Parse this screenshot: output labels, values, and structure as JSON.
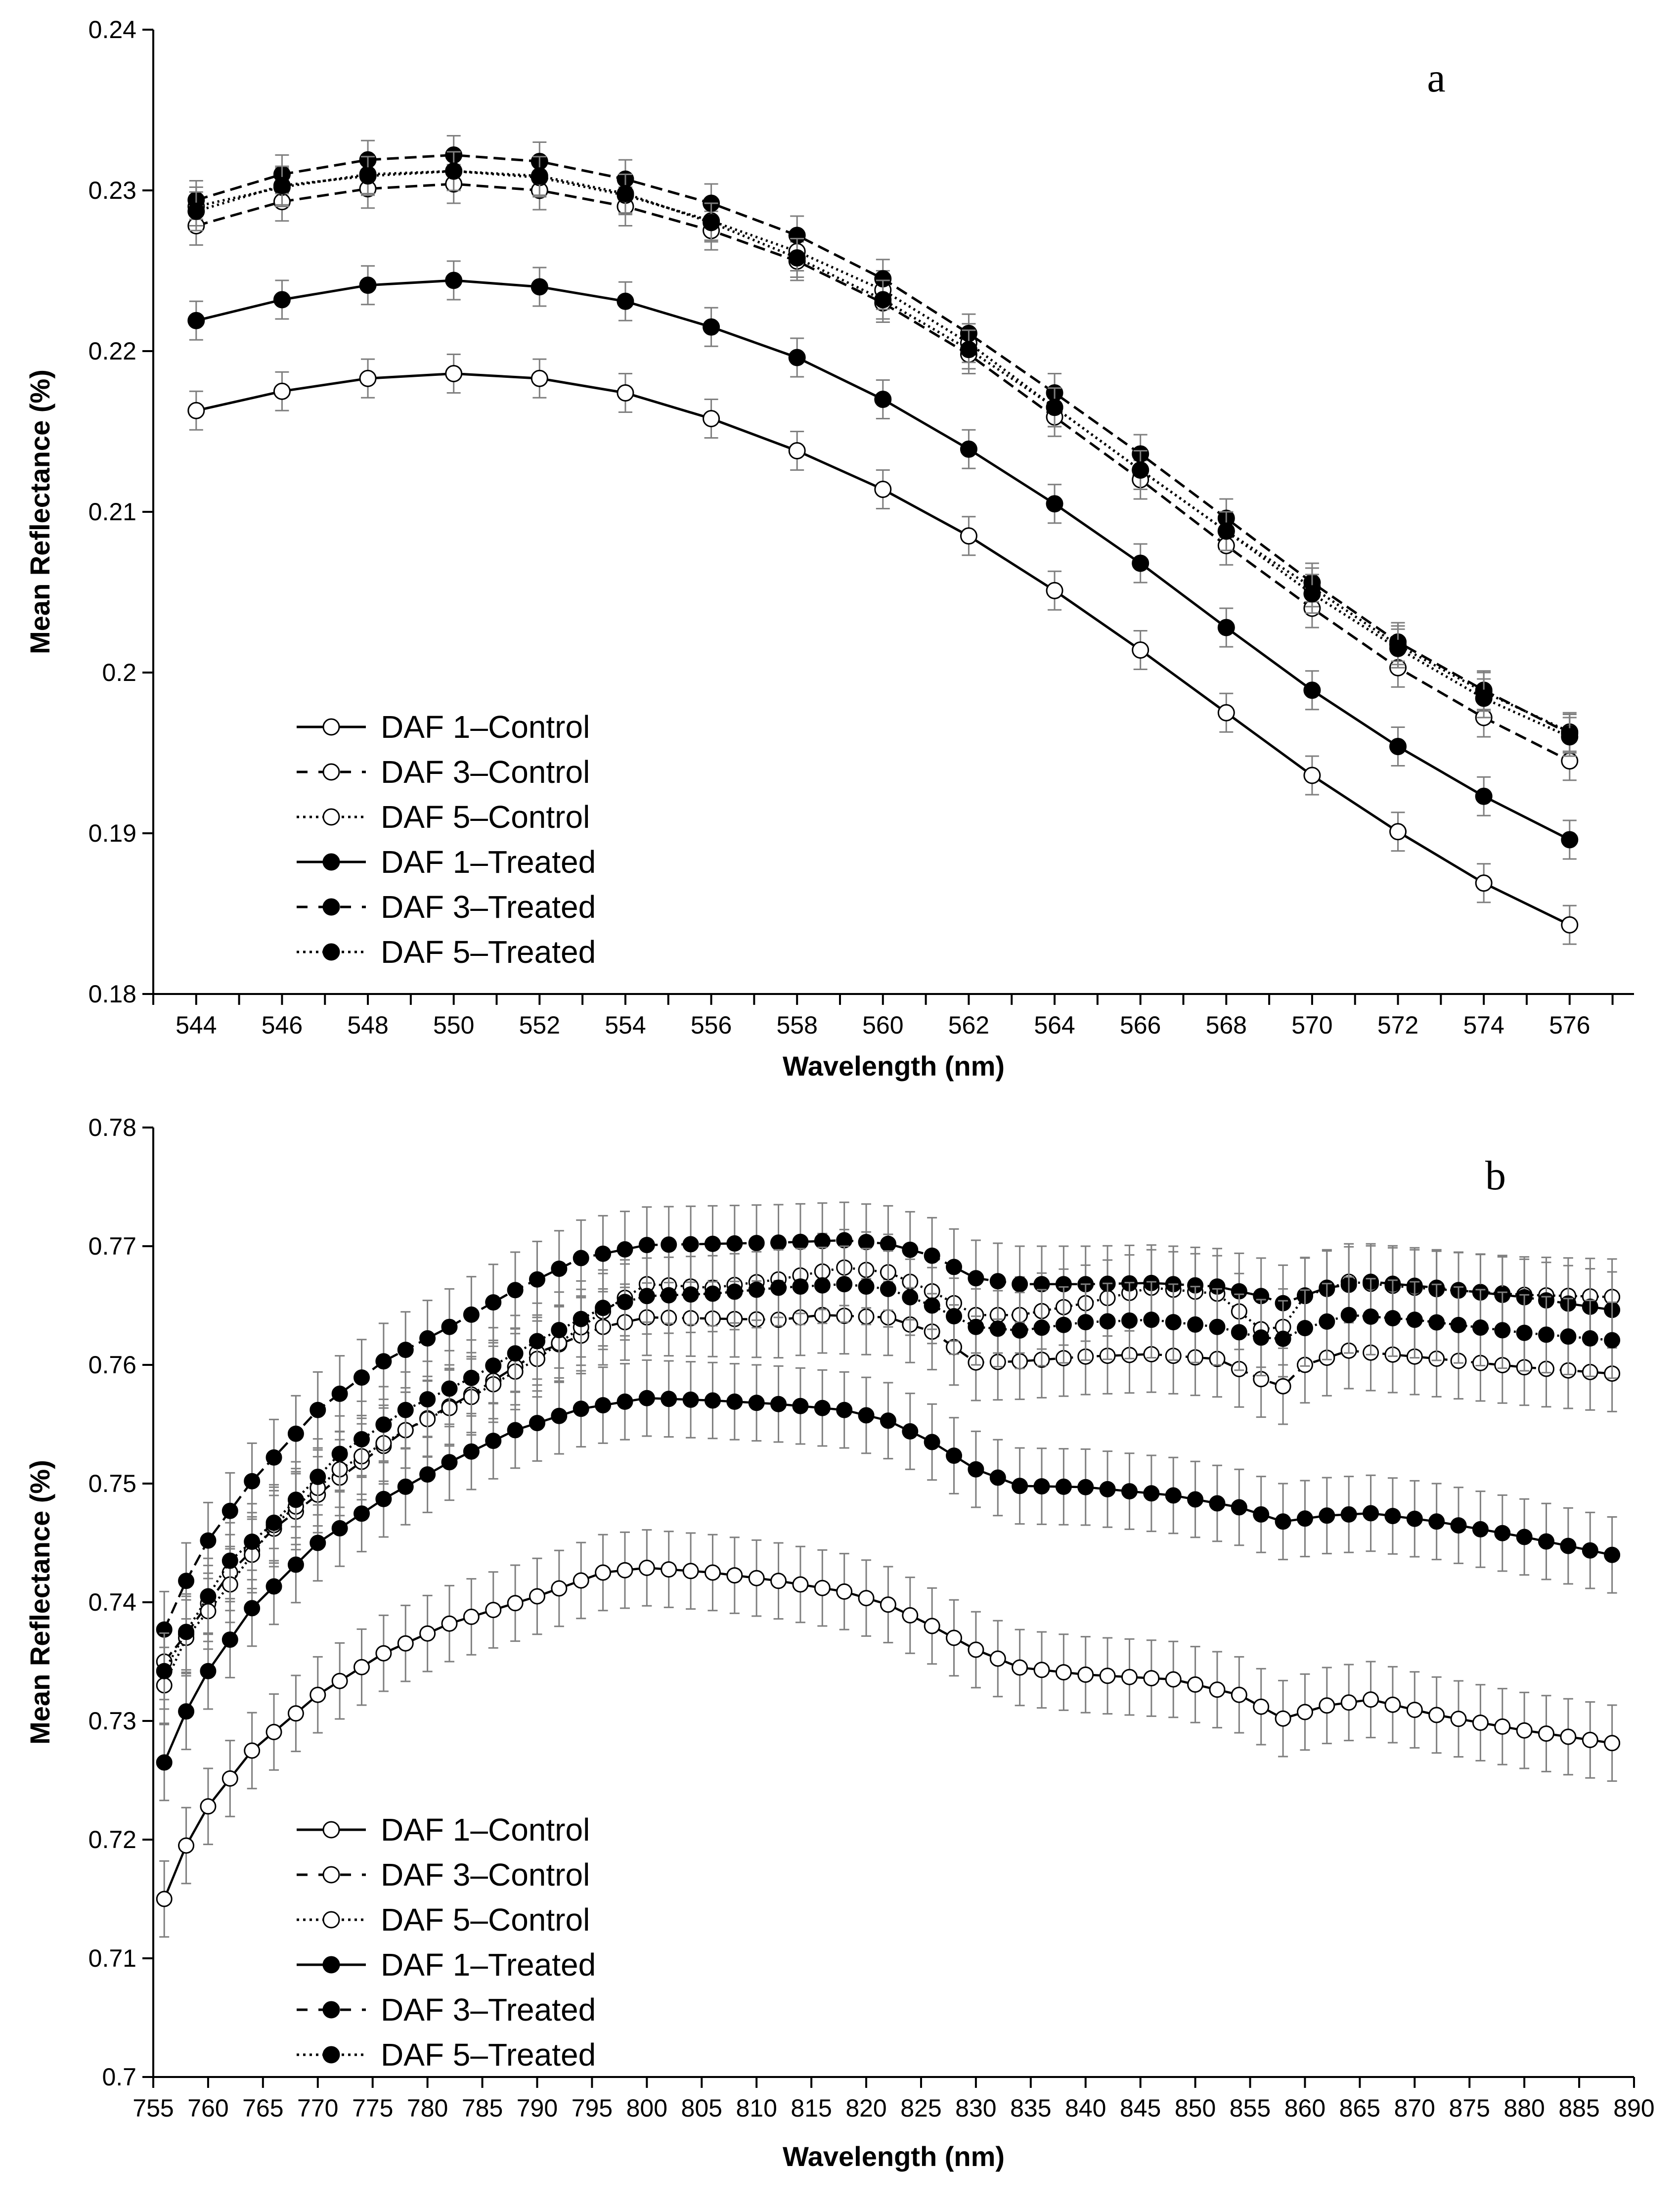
{
  "chart_data": [
    {
      "type": "line",
      "panel_label": "a",
      "xlabel": "Wavelength (nm)",
      "ylabel": "Mean Reflectance (%)",
      "xlim": [
        543,
        577.5
      ],
      "ylim": [
        0.18,
        0.24
      ],
      "x_ticks": [
        544,
        546,
        548,
        550,
        552,
        554,
        556,
        558,
        560,
        562,
        564,
        566,
        568,
        570,
        572,
        574,
        576
      ],
      "y_ticks": [
        0.18,
        0.19,
        0.2,
        0.21,
        0.22,
        0.23,
        0.24
      ],
      "y_tick_labels": [
        "0.18",
        "0.19",
        "0.2",
        "0.21",
        "0.22",
        "0.23",
        "0.24"
      ],
      "x": [
        544,
        546,
        548,
        550,
        552,
        554,
        556,
        558,
        560,
        562,
        564,
        566,
        568,
        570,
        572,
        574,
        576
      ],
      "error_bar": 0.0012,
      "legend_position": "bottom-left",
      "series": [
        {
          "name": "DAF 1–Control",
          "style": "solid",
          "marker": "open",
          "values": [
            0.2163,
            0.2175,
            0.2183,
            0.2186,
            0.2183,
            0.2174,
            0.2158,
            0.2138,
            0.2114,
            0.2085,
            0.2051,
            0.2014,
            0.1975,
            0.1936,
            0.1901,
            0.1869,
            0.1843
          ]
        },
        {
          "name": "DAF 3–Control",
          "style": "dashed",
          "marker": "open",
          "values": [
            0.2278,
            0.2293,
            0.2301,
            0.2304,
            0.23,
            0.229,
            0.2275,
            0.2256,
            0.223,
            0.2198,
            0.2159,
            0.212,
            0.2079,
            0.204,
            0.2003,
            0.1972,
            0.1945
          ]
        },
        {
          "name": "DAF 5–Control",
          "style": "dotted",
          "marker": "open",
          "values": [
            0.229,
            0.2302,
            0.231,
            0.2312,
            0.2308,
            0.2297,
            0.2281,
            0.2262,
            0.2238,
            0.2205,
            0.2165,
            0.2126,
            0.2088,
            0.2053,
            0.2017,
            0.1988,
            0.1963
          ]
        },
        {
          "name": "DAF 1–Treated",
          "style": "solid",
          "marker": "filled",
          "values": [
            0.2219,
            0.2232,
            0.2241,
            0.2244,
            0.224,
            0.2231,
            0.2215,
            0.2196,
            0.217,
            0.2139,
            0.2105,
            0.2068,
            0.2028,
            0.1989,
            0.1954,
            0.1923,
            0.1896
          ]
        },
        {
          "name": "DAF 3–Treated",
          "style": "dashed",
          "marker": "filled",
          "values": [
            0.2294,
            0.231,
            0.2319,
            0.2322,
            0.2318,
            0.2307,
            0.2292,
            0.2272,
            0.2245,
            0.2211,
            0.2174,
            0.2136,
            0.2096,
            0.2056,
            0.2019,
            0.1989,
            0.1962
          ]
        },
        {
          "name": "DAF 5–Treated",
          "style": "dotted",
          "marker": "filled",
          "values": [
            0.2287,
            0.2303,
            0.2309,
            0.2312,
            0.2309,
            0.2298,
            0.228,
            0.2258,
            0.2232,
            0.2201,
            0.2165,
            0.2126,
            0.2088,
            0.2049,
            0.2015,
            0.1984,
            0.196
          ]
        }
      ]
    },
    {
      "type": "line",
      "panel_label": "b",
      "xlabel": "Wavelength (nm)",
      "ylabel": "Mean Reflectance (%)",
      "xlim": [
        755,
        890
      ],
      "ylim": [
        0.7,
        0.78
      ],
      "x_ticks": [
        755,
        760,
        765,
        770,
        775,
        780,
        785,
        790,
        795,
        800,
        805,
        810,
        815,
        820,
        825,
        830,
        835,
        840,
        845,
        850,
        855,
        860,
        865,
        870,
        875,
        880,
        885,
        890
      ],
      "y_ticks": [
        0.7,
        0.71,
        0.72,
        0.73,
        0.74,
        0.75,
        0.76,
        0.77,
        0.78
      ],
      "y_tick_labels": [
        "0.7",
        "0.71",
        "0.72",
        "0.73",
        "0.74",
        "0.75",
        "0.76",
        "0.77",
        "0.78"
      ],
      "x_start": 756,
      "x_step": 2,
      "x_count": 67,
      "error_bar": 0.0032,
      "legend_position": "bottom-left",
      "series": [
        {
          "name": "DAF 1–Control",
          "style": "solid",
          "marker": "open",
          "knots": [
            [
              756,
              0.715
            ],
            [
              758,
              0.7195
            ],
            [
              760,
              0.7228
            ],
            [
              764,
              0.7275
            ],
            [
              770,
              0.7322
            ],
            [
              776,
              0.7357
            ],
            [
              782,
              0.7382
            ],
            [
              790,
              0.7405
            ],
            [
              796,
              0.7425
            ],
            [
              800,
              0.7429
            ],
            [
              806,
              0.7425
            ],
            [
              812,
              0.7418
            ],
            [
              818,
              0.7409
            ],
            [
              822,
              0.7398
            ],
            [
              826,
              0.738
            ],
            [
              830,
              0.736
            ],
            [
              834,
              0.7345
            ],
            [
              840,
              0.7339
            ],
            [
              848,
              0.7335
            ],
            [
              854,
              0.7322
            ],
            [
              858,
              0.7302
            ],
            [
              862,
              0.7313
            ],
            [
              866,
              0.7318
            ],
            [
              872,
              0.7305
            ],
            [
              880,
              0.7292
            ],
            [
              889,
              0.728
            ]
          ]
        },
        {
          "name": "DAF 3–Control",
          "style": "dashed",
          "marker": "open",
          "knots": [
            [
              756,
              0.735
            ],
            [
              758,
              0.7373
            ],
            [
              762,
              0.7425
            ],
            [
              766,
              0.7462
            ],
            [
              772,
              0.7505
            ],
            [
              778,
              0.7545
            ],
            [
              784,
              0.7575
            ],
            [
              790,
              0.761
            ],
            [
              796,
              0.7632
            ],
            [
              800,
              0.764
            ],
            [
              806,
              0.7639
            ],
            [
              812,
              0.7638
            ],
            [
              816,
              0.7642
            ],
            [
              822,
              0.764
            ],
            [
              826,
              0.7628
            ],
            [
              830,
              0.7602
            ],
            [
              834,
              0.7603
            ],
            [
              840,
              0.7607
            ],
            [
              846,
              0.7609
            ],
            [
              852,
              0.7605
            ],
            [
              856,
              0.7588
            ],
            [
              858,
              0.7582
            ],
            [
              860,
              0.76
            ],
            [
              864,
              0.7612
            ],
            [
              870,
              0.7607
            ],
            [
              880,
              0.7598
            ],
            [
              889,
              0.7592
            ]
          ]
        },
        {
          "name": "DAF 5–Control",
          "style": "dotted",
          "marker": "open",
          "knots": [
            [
              756,
              0.733
            ],
            [
              758,
              0.737
            ],
            [
              762,
              0.7415
            ],
            [
              766,
              0.7465
            ],
            [
              772,
              0.7512
            ],
            [
              778,
              0.7545
            ],
            [
              784,
              0.7573
            ],
            [
              790,
              0.7605
            ],
            [
              796,
              0.7645
            ],
            [
              800,
              0.7668
            ],
            [
              806,
              0.7665
            ],
            [
              812,
              0.7672
            ],
            [
              818,
              0.7682
            ],
            [
              822,
              0.7678
            ],
            [
              826,
              0.7662
            ],
            [
              830,
              0.7642
            ],
            [
              834,
              0.7642
            ],
            [
              840,
              0.7652
            ],
            [
              846,
              0.7665
            ],
            [
              852,
              0.766
            ],
            [
              856,
              0.763
            ],
            [
              858,
              0.7632
            ],
            [
              860,
              0.7658
            ],
            [
              864,
              0.767
            ],
            [
              870,
              0.7665
            ],
            [
              880,
              0.7659
            ],
            [
              889,
              0.7657
            ]
          ]
        },
        {
          "name": "DAF 1–Treated",
          "style": "solid",
          "marker": "filled",
          "knots": [
            [
              756,
              0.7265
            ],
            [
              758,
              0.7308
            ],
            [
              760,
              0.7342
            ],
            [
              764,
              0.7395
            ],
            [
              770,
              0.745
            ],
            [
              776,
              0.7487
            ],
            [
              782,
              0.7518
            ],
            [
              788,
              0.7545
            ],
            [
              794,
              0.7563
            ],
            [
              800,
              0.7572
            ],
            [
              806,
              0.757
            ],
            [
              812,
              0.7567
            ],
            [
              818,
              0.7562
            ],
            [
              822,
              0.7553
            ],
            [
              826,
              0.7535
            ],
            [
              830,
              0.7512
            ],
            [
              834,
              0.7498
            ],
            [
              840,
              0.7497
            ],
            [
              848,
              0.749
            ],
            [
              854,
              0.748
            ],
            [
              858,
              0.7468
            ],
            [
              862,
              0.7473
            ],
            [
              866,
              0.7475
            ],
            [
              872,
              0.7468
            ],
            [
              880,
              0.7455
            ],
            [
              889,
              0.7438
            ]
          ]
        },
        {
          "name": "DAF 3–Treated",
          "style": "dashed",
          "marker": "filled",
          "knots": [
            [
              756,
              0.7377
            ],
            [
              758,
              0.7418
            ],
            [
              760,
              0.7452
            ],
            [
              764,
              0.7502
            ],
            [
              770,
              0.7562
            ],
            [
              776,
              0.7603
            ],
            [
              782,
              0.7632
            ],
            [
              788,
              0.7663
            ],
            [
              794,
              0.769
            ],
            [
              800,
              0.7701
            ],
            [
              806,
              0.7702
            ],
            [
              812,
              0.7703
            ],
            [
              818,
              0.7705
            ],
            [
              822,
              0.7702
            ],
            [
              826,
              0.7692
            ],
            [
              830,
              0.7673
            ],
            [
              834,
              0.7668
            ],
            [
              840,
              0.7668
            ],
            [
              846,
              0.7669
            ],
            [
              852,
              0.7666
            ],
            [
              856,
              0.7658
            ],
            [
              858,
              0.7652
            ],
            [
              862,
              0.7665
            ],
            [
              866,
              0.767
            ],
            [
              872,
              0.7665
            ],
            [
              880,
              0.7657
            ],
            [
              889,
              0.7645
            ]
          ]
        },
        {
          "name": "DAF 5–Treated",
          "style": "dotted",
          "marker": "filled",
          "knots": [
            [
              756,
              0.7342
            ],
            [
              758,
              0.7375
            ],
            [
              762,
              0.7435
            ],
            [
              766,
              0.7467
            ],
            [
              772,
              0.7525
            ],
            [
              778,
              0.7562
            ],
            [
              784,
              0.7589
            ],
            [
              790,
              0.762
            ],
            [
              796,
              0.7648
            ],
            [
              800,
              0.7658
            ],
            [
              806,
              0.766
            ],
            [
              812,
              0.7665
            ],
            [
              818,
              0.7668
            ],
            [
              822,
              0.7664
            ],
            [
              826,
              0.765
            ],
            [
              830,
              0.7632
            ],
            [
              834,
              0.7629
            ],
            [
              840,
              0.7636
            ],
            [
              846,
              0.7638
            ],
            [
              852,
              0.7632
            ],
            [
              856,
              0.7623
            ],
            [
              858,
              0.7622
            ],
            [
              860,
              0.7631
            ],
            [
              864,
              0.7642
            ],
            [
              870,
              0.7638
            ],
            [
              880,
              0.7627
            ],
            [
              889,
              0.762
            ]
          ]
        }
      ]
    }
  ]
}
